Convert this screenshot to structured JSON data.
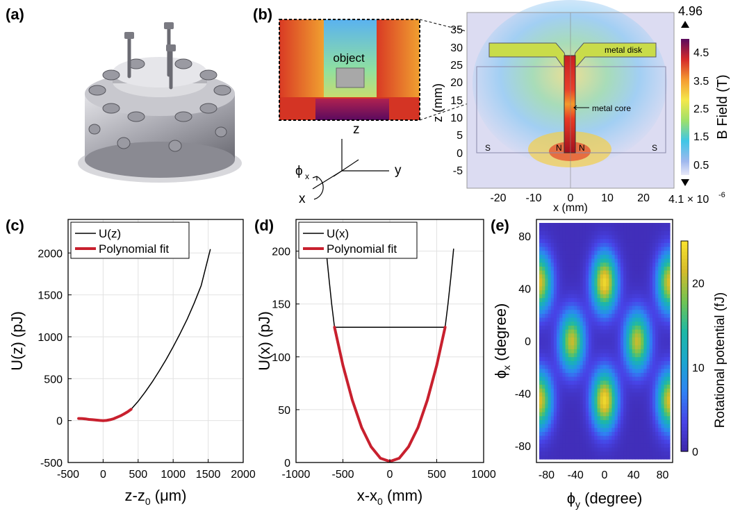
{
  "panel_labels": {
    "a": "(a)",
    "b": "(b)",
    "c": "(c)",
    "d": "(d)",
    "e": "(e)"
  },
  "panel_b": {
    "inset_label": "object",
    "axes": {
      "z": "z",
      "y": "y",
      "x": "x",
      "phi": "ϕ",
      "phi_sub": "x"
    },
    "field_labels": {
      "metal_disk": "metal disk",
      "metal_core": "metal core",
      "S_left": "S",
      "N_left": "N",
      "N_right": "N",
      "S_right": "S"
    },
    "xlabel": "x (mm)",
    "ylabel": "z (mm)",
    "x_ticks": [
      "-20",
      "-10",
      "0",
      "10",
      "20"
    ],
    "y_ticks": [
      "35",
      "30",
      "25",
      "20",
      "15",
      "10",
      "5",
      "0",
      "-5"
    ],
    "colorbar": {
      "label": "B Field (T)",
      "max_label": "4.96",
      "min_label": "4.1 × 10",
      "min_exp": "-6",
      "ticks": [
        "4.5",
        "3.5",
        "2.5",
        "1.5",
        "0.5"
      ]
    },
    "colors": {
      "field_low": "#d8d8f0",
      "field_high": "#c81e1e",
      "core": "#b01020"
    }
  },
  "chart_data": [
    {
      "id": "c",
      "type": "line",
      "xlabel": "z-z",
      "xlabel_sub": "0",
      "xlabel_unit": "(μm)",
      "ylabel": "U(z) (pJ)",
      "xlim": [
        -500,
        2000
      ],
      "ylim": [
        -500,
        2400
      ],
      "x_ticks": [
        "-500",
        "0",
        "500",
        "1000",
        "1500",
        "2000"
      ],
      "y_ticks": [
        "-500",
        "0",
        "500",
        "1000",
        "1500",
        "2000"
      ],
      "grid": true,
      "legend": "top-left",
      "series": [
        {
          "name": "U(z)",
          "color": "#000000",
          "width": 1.5,
          "x": [
            -350,
            -250,
            -150,
            -50,
            0,
            100,
            200,
            300,
            400,
            500,
            600,
            700,
            800,
            900,
            1000,
            1100,
            1200,
            1300,
            1400,
            1530
          ],
          "y": [
            25,
            20,
            10,
            2,
            0,
            10,
            40,
            80,
            135,
            230,
            340,
            460,
            590,
            730,
            880,
            1040,
            1210,
            1400,
            1610,
            2040
          ]
        },
        {
          "name": "Polynomial fit",
          "color": "#c8202e",
          "width": 4,
          "x": [
            -350,
            -300,
            -250,
            -200,
            -150,
            -100,
            -50,
            0,
            50,
            100,
            150,
            200,
            250,
            300,
            350,
            400
          ],
          "y": [
            25,
            24,
            20,
            14,
            10,
            6,
            2,
            0,
            2,
            10,
            22,
            40,
            58,
            80,
            105,
            135
          ]
        }
      ]
    },
    {
      "id": "d",
      "type": "line",
      "xlabel": "x-x",
      "xlabel_sub": "0",
      "xlabel_unit": "(mm)",
      "ylabel": "U(x) (pJ)",
      "xlim": [
        -1000,
        1000
      ],
      "ylim": [
        0,
        230
      ],
      "x_ticks": [
        "-1000",
        "-500",
        "0",
        "500",
        "1000"
      ],
      "y_ticks": [
        "0",
        "50",
        "100",
        "150",
        "200"
      ],
      "grid": true,
      "legend": "top-left",
      "series": [
        {
          "name": "U(x)",
          "color": "#000000",
          "width": 1.5,
          "x": [
            -680,
            -650,
            -620,
            -590,
            590,
            620,
            650,
            680
          ],
          "y": [
            202,
            175,
            150,
            128,
            128,
            150,
            175,
            202
          ]
        },
        {
          "name": "Polynomial fit",
          "color": "#c8202e",
          "width": 4,
          "x": [
            -590,
            -500,
            -400,
            -300,
            -200,
            -100,
            0,
            100,
            200,
            300,
            400,
            500,
            590
          ],
          "y": [
            128,
            92,
            59,
            33,
            15,
            4,
            1,
            4,
            15,
            33,
            59,
            92,
            128
          ]
        }
      ]
    },
    {
      "id": "e",
      "type": "heatmap",
      "xlabel": "ϕ",
      "xlabel_sub": "y",
      "xlabel_unit": "(degree)",
      "ylabel": "ϕ",
      "ylabel_sub": "x",
      "ylabel_unit": "(degree)",
      "xlim": [
        -90,
        90
      ],
      "ylim": [
        -90,
        90
      ],
      "x_ticks": [
        "-80",
        "-40",
        "0",
        "40",
        "80"
      ],
      "y_ticks": [
        "80",
        "40",
        "0",
        "-40",
        "-80"
      ],
      "colorbar_label": "Rotational potential (fJ)",
      "colorbar_ticks": [
        "20",
        "10",
        "0"
      ],
      "value_range": [
        0,
        25
      ],
      "colormap": [
        "#3e26a8",
        "#4744e7",
        "#2f83f4",
        "#1ba6cf",
        "#1eb8a5",
        "#70c453",
        "#d4bb2a",
        "#f9e32f"
      ],
      "description_of_peaks": [
        {
          "x": 0,
          "y": 45,
          "value": 24
        },
        {
          "x": 0,
          "y": -45,
          "value": 24
        },
        {
          "x": -90,
          "y": 45,
          "value": 22
        },
        {
          "x": 90,
          "y": 45,
          "value": 22
        },
        {
          "x": -90,
          "y": -45,
          "value": 22
        },
        {
          "x": 90,
          "y": -45,
          "value": 22
        },
        {
          "x": -45,
          "y": 0,
          "value": 21
        },
        {
          "x": 45,
          "y": 0,
          "value": 21
        }
      ]
    }
  ]
}
